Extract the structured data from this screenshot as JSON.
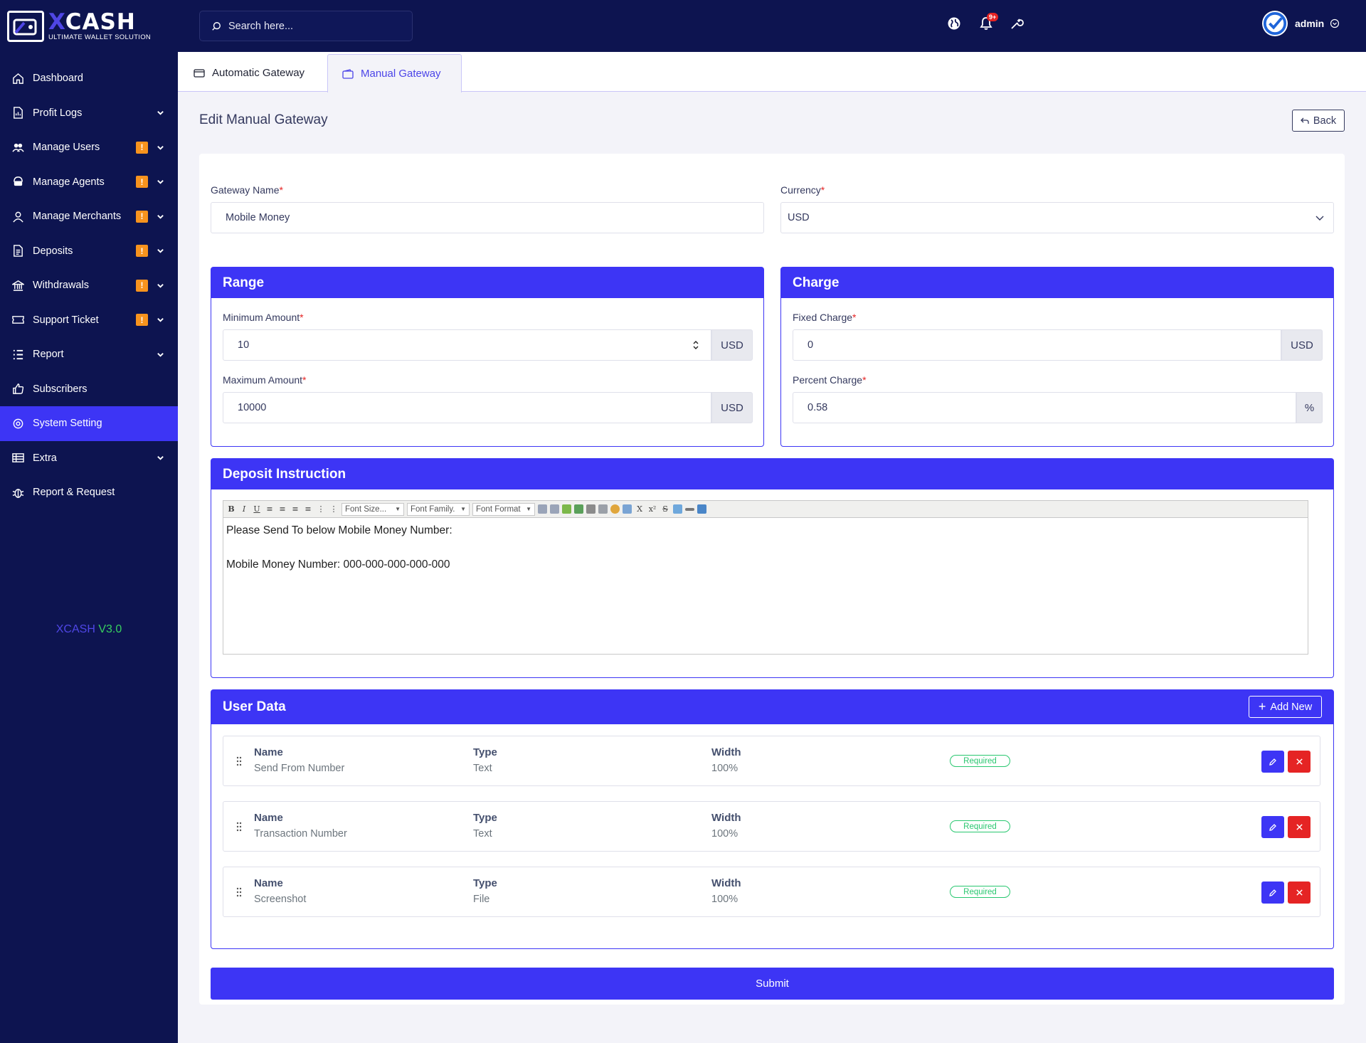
{
  "brand": {
    "name_x": "X",
    "name_rest": "CASH",
    "tagline": "ULTIMATE WALLET SOLUTION",
    "accent": "#3d35f5",
    "sidebar_bg": "#0d1450"
  },
  "sidebar": {
    "items": [
      {
        "label": "Dashboard",
        "icon": "home-icon",
        "badge": "",
        "chevron": false
      },
      {
        "label": "Profit Logs",
        "icon": "document-chart-icon",
        "badge": "",
        "chevron": true
      },
      {
        "label": "Manage Users",
        "icon": "users-icon",
        "badge": "!",
        "chevron": true
      },
      {
        "label": "Manage Agents",
        "icon": "agent-icon",
        "badge": "!",
        "chevron": true
      },
      {
        "label": "Manage Merchants",
        "icon": "user-icon",
        "badge": "!",
        "chevron": true
      },
      {
        "label": "Deposits",
        "icon": "deposit-icon",
        "badge": "!",
        "chevron": true
      },
      {
        "label": "Withdrawals",
        "icon": "bank-icon",
        "badge": "!",
        "chevron": true
      },
      {
        "label": "Support Ticket",
        "icon": "ticket-icon",
        "badge": "!",
        "chevron": true
      },
      {
        "label": "Report",
        "icon": "list-icon",
        "badge": "",
        "chevron": true
      },
      {
        "label": "Subscribers",
        "icon": "thumbs-up-icon",
        "badge": "",
        "chevron": false
      },
      {
        "label": "System Setting",
        "icon": "settings-icon",
        "badge": "",
        "chevron": false,
        "active": true
      },
      {
        "label": "Extra",
        "icon": "table-icon",
        "badge": "",
        "chevron": true
      },
      {
        "label": "Report & Request",
        "icon": "bug-icon",
        "badge": "",
        "chevron": false
      }
    ],
    "version_name": "XCASH",
    "version_number": "V3.0"
  },
  "topbar": {
    "search_placeholder": "Search here...",
    "notification_count": "9+",
    "username": "admin"
  },
  "tabs": [
    {
      "label": "Automatic Gateway",
      "active": false
    },
    {
      "label": "Manual Gateway",
      "active": true
    }
  ],
  "page": {
    "title": "Edit Manual Gateway",
    "back_label": "Back"
  },
  "form": {
    "gateway_name_label": "Gateway Name",
    "gateway_name_value": "Mobile  Money",
    "currency_label": "Currency",
    "currency_value": "USD",
    "required_mark": "*",
    "range": {
      "title": "Range",
      "min_label": "Minimum Amount",
      "min_value": "10",
      "min_unit": "USD",
      "max_label": "Maximum Amount",
      "max_value": "10000",
      "max_unit": "USD"
    },
    "charge": {
      "title": "Charge",
      "fixed_label": "Fixed Charge",
      "fixed_value": "0",
      "fixed_unit": "USD",
      "percent_label": "Percent Charge",
      "percent_value": "0.58",
      "percent_unit": "%"
    },
    "deposit_instruction": {
      "title": "Deposit Instruction",
      "toolbar": {
        "bold": "B",
        "italic": "I",
        "underline": "U",
        "font_size": "Font Size...",
        "font_family": "Font Family.",
        "font_format": "Font Format",
        "subscript": "X",
        "superscript": "x²"
      },
      "line1": "Please Send To below Mobile Money Number:",
      "line2": "Mobile Money Number: 000-000-000-000-000"
    },
    "user_data": {
      "title": "User Data",
      "add_new_label": "Add New",
      "headers": {
        "name": "Name",
        "type": "Type",
        "width": "Width"
      },
      "rows": [
        {
          "name": "Send From Number",
          "type": "Text",
          "width": "100%",
          "status": "Required"
        },
        {
          "name": "Transaction Number",
          "type": "Text",
          "width": "100%",
          "status": "Required"
        },
        {
          "name": "Screenshot",
          "type": "File",
          "width": "100%",
          "status": "Required"
        }
      ]
    },
    "submit_label": "Submit"
  }
}
